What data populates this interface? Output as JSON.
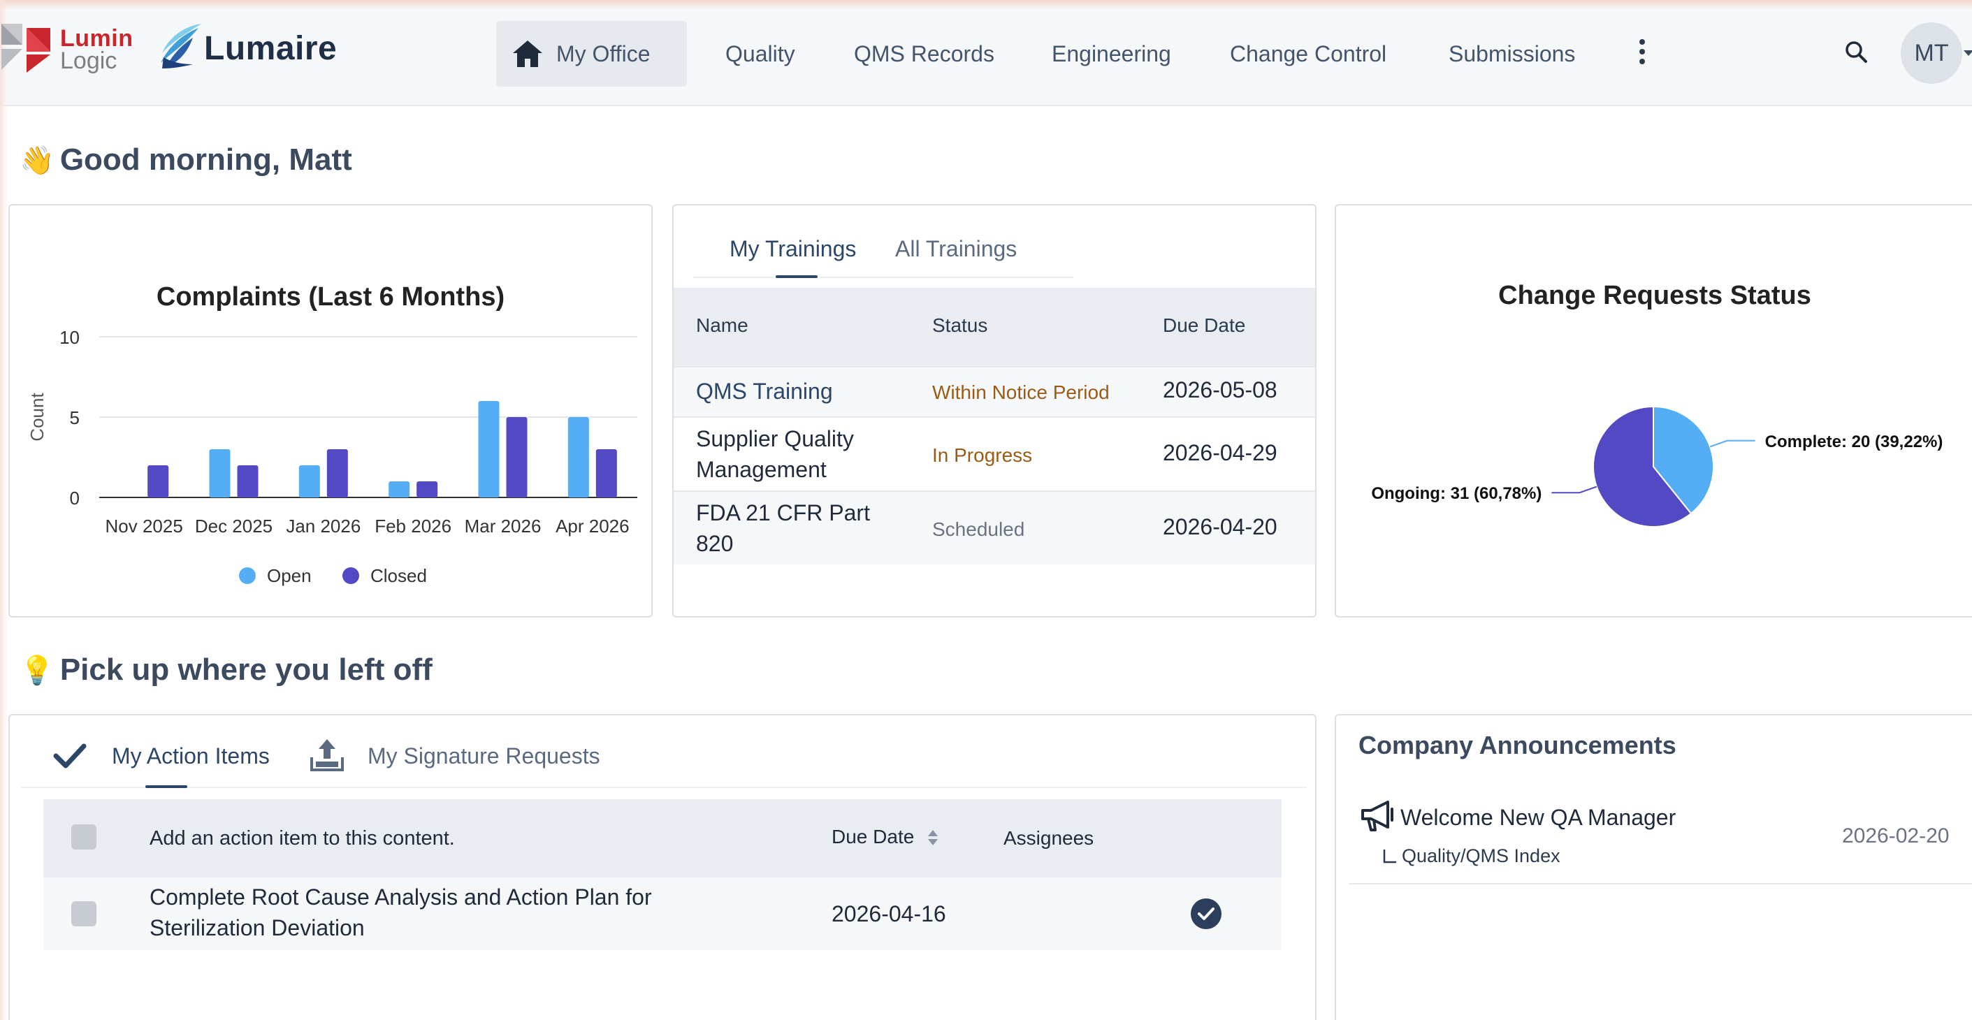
{
  "brand": {
    "company_line1": "Lumin",
    "company_line2": "Logic",
    "product": "Lumaire"
  },
  "nav": {
    "items": [
      {
        "label": "My Office",
        "active": true,
        "icon": "home-icon"
      },
      {
        "label": "Quality"
      },
      {
        "label": "QMS Records"
      },
      {
        "label": "Engineering"
      },
      {
        "label": "Change Control"
      },
      {
        "label": "Submissions"
      }
    ],
    "more_icon": "kebab-icon",
    "search_icon": "search-icon",
    "avatar_initials": "MT"
  },
  "greeting": {
    "emoji": "👋",
    "text": "Good morning, Matt"
  },
  "complaints_chart": {
    "chart_data": {
      "type": "bar",
      "title": "Complaints (Last 6 Months)",
      "ylabel": "Count",
      "xlabel": "",
      "ylim": [
        0,
        10
      ],
      "yticks": [
        0,
        5,
        10
      ],
      "categories": [
        "Nov 2025",
        "Dec 2025",
        "Jan 2026",
        "Feb 2026",
        "Mar 2026",
        "Apr 2026"
      ],
      "series": [
        {
          "name": "Open",
          "color": "#55aef5",
          "values": [
            0,
            3,
            2,
            1,
            6,
            5
          ]
        },
        {
          "name": "Closed",
          "color": "#5349c4",
          "values": [
            2,
            2,
            3,
            1,
            5,
            3
          ]
        }
      ],
      "grid": true,
      "legend": "bottom"
    }
  },
  "trainings": {
    "tabs": [
      "My Trainings",
      "All Trainings"
    ],
    "columns": [
      "Name",
      "Status",
      "Due Date"
    ],
    "rows": [
      {
        "name": "QMS Training",
        "status": "Within Notice Period",
        "status_color": "#9a5b16",
        "due": "2026-05-08"
      },
      {
        "name_line1": "Supplier Quality",
        "name_line2": "Management",
        "status": "In Progress",
        "status_color": "#9a5b16",
        "due": "2026-04-29"
      },
      {
        "name_line1": "FDA 21 CFR Part",
        "name_line2": "820",
        "status": "Scheduled",
        "status_color": "#6a7382",
        "due": "2026-04-20"
      }
    ]
  },
  "change_requests": {
    "chart_data": {
      "type": "pie",
      "title": "Change Requests Status",
      "slices": [
        {
          "label": "Complete",
          "value": 20,
          "percent": "39,22%",
          "color": "#55aef5"
        },
        {
          "label": "Ongoing",
          "value": 31,
          "percent": "60,78%",
          "color": "#5349c4"
        }
      ],
      "slice_labels": [
        "Complete: 20 (39,22%)",
        "Ongoing: 31 (60,78%)"
      ]
    }
  },
  "pickup": {
    "emoji": "💡",
    "text": "Pick up where you left off"
  },
  "actions": {
    "tabs": [
      "My Action Items",
      "My Signature Requests"
    ],
    "header_text": "Add an action item to this content.",
    "col_due": "Due Date",
    "col_assignees": "Assignees",
    "rows": [
      {
        "title_line1": "Complete Root Cause Analysis and Action Plan for",
        "title_line2": "Sterilization Deviation",
        "due": "2026-04-16"
      }
    ]
  },
  "announcements": {
    "title": "Company Announcements",
    "items": [
      {
        "title": "Welcome New QA Manager",
        "sub": "Quality/QMS Index",
        "date": "2026-02-20"
      }
    ]
  }
}
